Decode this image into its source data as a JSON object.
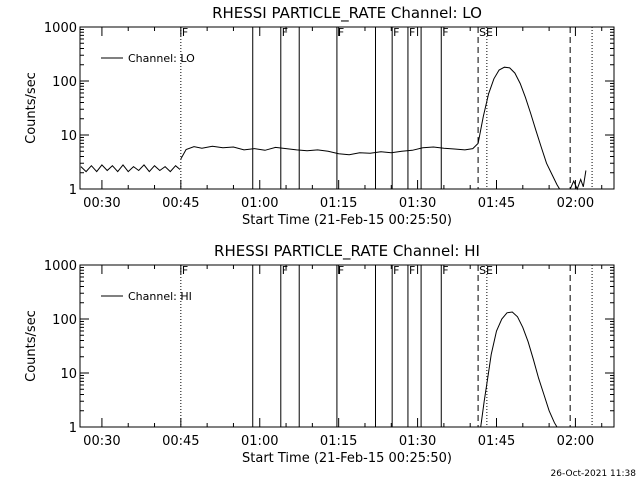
{
  "footer": {
    "timestamp": "26-Oct-2021 11:38"
  },
  "chart_data": [
    {
      "type": "line",
      "title": "RHESSI PARTICLE_RATE Channel: LO",
      "ylabel": "Counts/sec",
      "xlabel": "Start Time (21-Feb-15 00:25:50)",
      "yscale": "log",
      "ylim": [
        1,
        1000
      ],
      "xlim": [
        "00:25:50",
        "02:07:20"
      ],
      "ytick_labels": [
        "1",
        "10",
        "100",
        "1000"
      ],
      "xtick_labels": [
        "00:30",
        "00:45",
        "01:00",
        "01:15",
        "01:30",
        "01:45",
        "02:00"
      ],
      "legend": {
        "label": "Channel: LO",
        "position": "upper-left"
      },
      "dotted_lines": [
        "00:45:00",
        "01:43:10",
        "02:03:10"
      ],
      "dashed_lines": [
        "01:41:30",
        "01:59:00"
      ],
      "solid_lines": [
        "00:58:40",
        "01:04:00",
        "01:07:30",
        "01:14:40",
        "01:22:00",
        "01:25:10",
        "01:28:10",
        "01:30:40",
        "01:34:30"
      ],
      "flag_markers": [
        {
          "x": "00:45:00",
          "label": "F"
        },
        {
          "x": "01:04:00",
          "label": "F"
        },
        {
          "x": "01:14:40",
          "label": "F"
        },
        {
          "x": "01:25:10",
          "label": "F"
        },
        {
          "x": "01:28:10",
          "label": "F"
        },
        {
          "x": "01:34:30",
          "label": "F"
        },
        {
          "x": "01:41:30",
          "label": "SE"
        }
      ],
      "series": [
        {
          "name": "Channel: LO",
          "segments": [
            {
              "x": [
                "00:26:00",
                "00:27:00",
                "00:28:00",
                "00:29:00",
                "00:30:00",
                "00:31:00",
                "00:32:00",
                "00:33:00",
                "00:34:00",
                "00:35:00",
                "00:36:00",
                "00:37:00",
                "00:38:00",
                "00:39:00",
                "00:40:00",
                "00:41:00",
                "00:42:00",
                "00:43:00",
                "00:44:00",
                "00:44:50"
              ],
              "y": [
                2.6,
                2.1,
                2.7,
                2.1,
                2.8,
                2.2,
                2.7,
                2.1,
                2.8,
                2.1,
                2.6,
                2.2,
                2.8,
                2.1,
                2.7,
                2.2,
                2.6,
                2.1,
                2.7,
                2.3
              ]
            },
            {
              "x": [
                "00:45:00",
                "00:46:00",
                "00:47:30",
                "00:49:00",
                "00:51:00",
                "00:53:00",
                "00:55:00",
                "00:57:00",
                "00:59:00",
                "01:01:00",
                "01:03:00",
                "01:05:00",
                "01:07:00",
                "01:09:00",
                "01:11:00",
                "01:13:00",
                "01:15:00",
                "01:17:00",
                "01:19:00",
                "01:21:00",
                "01:23:00",
                "01:25:00",
                "01:27:00",
                "01:29:00",
                "01:31:00",
                "01:33:00",
                "01:35:00",
                "01:37:00",
                "01:39:00",
                "01:40:30",
                "01:41:30",
                "01:42:30",
                "01:43:30",
                "01:44:30",
                "01:45:30",
                "01:46:30",
                "01:47:30",
                "01:48:30",
                "01:49:30",
                "01:50:30",
                "01:51:30",
                "01:52:30",
                "01:53:30",
                "01:54:30",
                "01:55:30",
                "01:56:30",
                "01:57:00"
              ],
              "y": [
                3.6,
                5.4,
                6.1,
                5.7,
                6.2,
                5.8,
                6.0,
                5.3,
                5.6,
                5.2,
                5.9,
                5.6,
                5.3,
                5.1,
                5.3,
                5.0,
                4.5,
                4.3,
                4.7,
                4.6,
                4.9,
                4.7,
                5.0,
                5.2,
                5.8,
                6.0,
                5.7,
                5.5,
                5.3,
                5.6,
                7.0,
                22,
                58,
                110,
                160,
                180,
                175,
                140,
                90,
                50,
                25,
                12,
                6,
                3,
                1.9,
                1.2,
                1.0
              ]
            },
            {
              "x": [
                "01:59:00",
                "01:59:40",
                "02:00:20",
                "02:01:00",
                "02:01:30",
                "02:02:00"
              ],
              "y": [
                1.0,
                1.4,
                1.0,
                1.5,
                1.1,
                2.2
              ]
            }
          ]
        }
      ]
    },
    {
      "type": "line",
      "title": "RHESSI PARTICLE_RATE Channel: HI",
      "ylabel": "Counts/sec",
      "xlabel": "Start Time (21-Feb-15 00:25:50)",
      "yscale": "log",
      "ylim": [
        1,
        1000
      ],
      "xlim": [
        "00:25:50",
        "02:07:20"
      ],
      "ytick_labels": [
        "1",
        "10",
        "100",
        "1000"
      ],
      "xtick_labels": [
        "00:30",
        "00:45",
        "01:00",
        "01:15",
        "01:30",
        "01:45",
        "02:00"
      ],
      "legend": {
        "label": "Channel: HI",
        "position": "upper-left"
      },
      "dotted_lines": [
        "00:45:00",
        "01:43:10",
        "02:03:10"
      ],
      "dashed_lines": [
        "01:41:30",
        "01:59:00"
      ],
      "solid_lines": [
        "00:58:40",
        "01:04:00",
        "01:07:30",
        "01:14:40",
        "01:22:00",
        "01:25:10",
        "01:28:10",
        "01:30:40",
        "01:34:30"
      ],
      "flag_markers": [
        {
          "x": "00:45:00",
          "label": "F"
        },
        {
          "x": "01:04:00",
          "label": "F"
        },
        {
          "x": "01:14:40",
          "label": "F"
        },
        {
          "x": "01:25:10",
          "label": "F"
        },
        {
          "x": "01:28:10",
          "label": "F"
        },
        {
          "x": "01:34:30",
          "label": "F"
        },
        {
          "x": "01:41:30",
          "label": "SE"
        }
      ],
      "series": [
        {
          "name": "Channel: HI",
          "segments": [
            {
              "x": [
                "01:42:00",
                "01:42:40",
                "01:43:20",
                "01:44:00",
                "01:45:00",
                "01:46:00",
                "01:47:00",
                "01:48:00",
                "01:49:00",
                "01:50:00",
                "01:51:00",
                "01:52:00",
                "01:53:00",
                "01:54:00",
                "01:55:00",
                "01:56:00",
                "01:56:30"
              ],
              "y": [
                1.0,
                3.0,
                8,
                22,
                60,
                100,
                130,
                135,
                110,
                70,
                38,
                18,
                8,
                4,
                2.0,
                1.2,
                1.0
              ]
            }
          ]
        }
      ]
    }
  ]
}
